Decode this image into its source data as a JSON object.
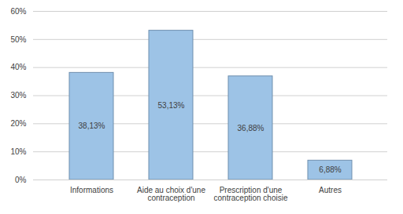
{
  "chart_data": {
    "type": "bar",
    "categories": [
      "Informations",
      "Aide au choix d'une contraception",
      "Prescription d'une contraception choisie",
      "Autres"
    ],
    "values": [
      38.13,
      53.13,
      36.88,
      6.88
    ],
    "value_labels": [
      "38,13%",
      "53,13%",
      "36,88%",
      "6,88%"
    ],
    "color": "#9dc3e6",
    "ylim": [
      0,
      60
    ],
    "yticks": [
      {
        "value": 0,
        "label": "0%"
      },
      {
        "value": 10,
        "label": "10%"
      },
      {
        "value": 20,
        "label": "20%"
      },
      {
        "value": 30,
        "label": "30%"
      },
      {
        "value": 40,
        "label": "40%"
      },
      {
        "value": 50,
        "label": "50%"
      },
      {
        "value": 60,
        "label": "60%"
      }
    ],
    "grid": true,
    "data_labels": true
  }
}
